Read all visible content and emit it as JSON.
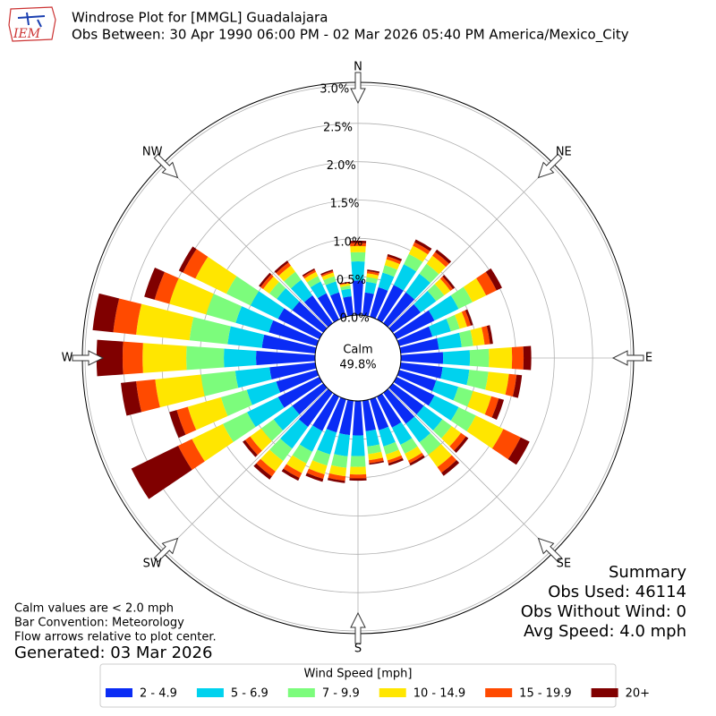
{
  "chart_data": {
    "type": "windrose",
    "logo_text": "IEM",
    "title": "Windrose Plot for [MMGL] Guadalajara",
    "subtitle": "Obs Between: 30 Apr 1990 06:00 PM - 02 Mar 2026 05:40 PM America/Mexico_City",
    "compass_labels": [
      "N",
      "NE",
      "E",
      "SE",
      "S",
      "SW",
      "W",
      "NW"
    ],
    "directions": [
      0,
      10,
      20,
      30,
      40,
      50,
      60,
      70,
      80,
      90,
      100,
      110,
      120,
      130,
      140,
      150,
      160,
      170,
      180,
      190,
      200,
      210,
      220,
      230,
      240,
      250,
      260,
      270,
      280,
      290,
      300,
      310,
      320,
      330,
      340,
      350
    ],
    "ylim": [
      0,
      3
    ],
    "yticks": [
      {
        "value": 0,
        "label": "0.0%"
      },
      {
        "value": 0.5,
        "label": "0.5%"
      },
      {
        "value": 1,
        "label": "1.0%"
      },
      {
        "value": 1.5,
        "label": "1.5%"
      },
      {
        "value": 2,
        "label": "2.0%"
      },
      {
        "value": 2.5,
        "label": "2.5%"
      },
      {
        "value": 3,
        "label": "3.0%"
      }
    ],
    "grid": true,
    "calm_label": "Calm",
    "calm_value": 49.8,
    "calm_value_label": "49.8%",
    "legend_title": "Wind Speed [mph]",
    "series": [
      {
        "name": "2 - 4.9",
        "color": "#0a2cf5",
        "values": [
          0.45,
          0.3,
          0.4,
          0.5,
          0.5,
          0.45,
          0.55,
          0.45,
          0.5,
          0.55,
          0.55,
          0.5,
          0.55,
          0.5,
          0.5,
          0.45,
          0.42,
          0.4,
          0.45,
          0.45,
          0.45,
          0.5,
          0.55,
          0.5,
          0.6,
          0.55,
          0.6,
          0.77,
          0.7,
          0.65,
          0.6,
          0.5,
          0.45,
          0.38,
          0.33,
          0.25
        ]
      },
      {
        "name": "5 - 6.9",
        "color": "#00d2ee",
        "values": [
          0.25,
          0.14,
          0.2,
          0.3,
          0.3,
          0.25,
          0.35,
          0.25,
          0.3,
          0.35,
          0.35,
          0.3,
          0.35,
          0.3,
          0.3,
          0.25,
          0.22,
          0.2,
          0.27,
          0.28,
          0.3,
          0.3,
          0.35,
          0.3,
          0.45,
          0.4,
          0.45,
          0.42,
          0.45,
          0.45,
          0.4,
          0.25,
          0.25,
          0.17,
          0.15,
          0.1
        ]
      },
      {
        "name": "7 - 9.9",
        "color": "#7cfc7c",
        "values": [
          0.12,
          0.06,
          0.1,
          0.15,
          0.16,
          0.13,
          0.2,
          0.12,
          0.15,
          0.25,
          0.25,
          0.2,
          0.25,
          0.15,
          0.2,
          0.13,
          0.11,
          0.1,
          0.14,
          0.15,
          0.15,
          0.17,
          0.2,
          0.2,
          0.35,
          0.35,
          0.45,
          0.49,
          0.5,
          0.4,
          0.35,
          0.12,
          0.13,
          0.08,
          0.07,
          0.04
        ]
      },
      {
        "name": "10 - 14.9",
        "color": "#ffe600",
        "values": [
          0.08,
          0.05,
          0.08,
          0.12,
          0.13,
          0.1,
          0.2,
          0.1,
          0.15,
          0.3,
          0.27,
          0.25,
          0.4,
          0.15,
          0.2,
          0.1,
          0.08,
          0.08,
          0.1,
          0.11,
          0.12,
          0.14,
          0.17,
          0.18,
          0.45,
          0.45,
          0.6,
          0.57,
          0.7,
          0.5,
          0.45,
          0.1,
          0.1,
          0.06,
          0.05,
          0.03
        ]
      },
      {
        "name": "15 - 19.9",
        "color": "#ff4a00",
        "values": [
          0.04,
          0.03,
          0.04,
          0.05,
          0.06,
          0.04,
          0.15,
          0.05,
          0.07,
          0.15,
          0.1,
          0.1,
          0.25,
          0.08,
          0.09,
          0.04,
          0.04,
          0.04,
          0.05,
          0.06,
          0.06,
          0.07,
          0.08,
          0.08,
          0.2,
          0.15,
          0.25,
          0.26,
          0.3,
          0.2,
          0.18,
          0.04,
          0.05,
          0.03,
          0.02,
          0.01
        ]
      },
      {
        "name": "20+",
        "color": "#800000",
        "values": [
          0.03,
          0.02,
          0.03,
          0.04,
          0.04,
          0.03,
          0.08,
          0.03,
          0.04,
          0.1,
          0.07,
          0.07,
          0.13,
          0.04,
          0.05,
          0.03,
          0.03,
          0.02,
          0.03,
          0.03,
          0.04,
          0.04,
          0.05,
          0.04,
          0.68,
          0.1,
          0.2,
          0.34,
          0.27,
          0.14,
          0.06,
          0.03,
          0.03,
          0.02,
          0.02,
          0.01
        ]
      }
    ],
    "notes": [
      "Calm values are < 2.0 mph",
      "Bar Convention: Meteorology",
      "Flow arrows relative to plot center."
    ],
    "generated": "Generated: 03 Mar 2026",
    "summary": [
      "Summary",
      "Obs Used: 46114",
      "Obs Without Wind: 0",
      "Avg Speed: 4.0 mph"
    ]
  }
}
